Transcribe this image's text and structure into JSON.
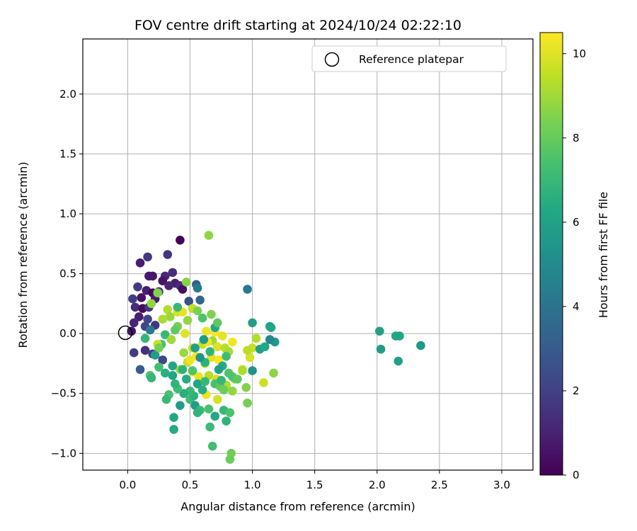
{
  "chart_data": {
    "type": "scatter",
    "title": "FOV centre drift starting at 2024/10/24 02:22:10",
    "xlabel": "Angular distance from reference (arcmin)",
    "ylabel": "Rotation from reference (arcmin)",
    "xlim": [
      -0.36,
      3.25
    ],
    "ylim": [
      -1.14,
      2.46
    ],
    "xticks": [
      0.0,
      0.5,
      1.0,
      1.5,
      2.0,
      2.5,
      3.0
    ],
    "xtick_labels": [
      "0.0",
      "0.5",
      "1.0",
      "1.5",
      "2.0",
      "2.5",
      "3.0"
    ],
    "yticks": [
      -1.0,
      -0.5,
      0.0,
      0.5,
      1.0,
      1.5,
      2.0
    ],
    "ytick_labels": [
      "−1.0",
      "−0.5",
      "0.0",
      "0.5",
      "1.0",
      "1.5",
      "2.0"
    ],
    "grid": true,
    "legend": {
      "placement": "upper-right",
      "entries": [
        "Reference platepar"
      ]
    },
    "reference_point": {
      "x": 0.0,
      "y": 0.0,
      "marker": "open-circle"
    },
    "colorbar": {
      "label": "Hours from first FF file",
      "colormap": "viridis",
      "range": [
        0,
        10.5
      ],
      "ticks": [
        0,
        2,
        4,
        6,
        8,
        10
      ],
      "tick_labels": [
        "0",
        "2",
        "4",
        "6",
        "8",
        "10"
      ]
    },
    "series": [
      {
        "color_by": "hours",
        "points": [
          [
            0.42,
            0.78,
            0.1
          ],
          [
            0.1,
            0.59,
            0.9
          ],
          [
            0.16,
            0.64,
            1.7
          ],
          [
            0.32,
            0.66,
            1.6
          ],
          [
            0.36,
            0.51,
            1.4
          ],
          [
            0.17,
            0.48,
            0.8
          ],
          [
            0.2,
            0.48,
            0.7
          ],
          [
            0.3,
            0.48,
            1.2
          ],
          [
            0.28,
            0.44,
            0.6
          ],
          [
            0.38,
            0.42,
            0.9
          ],
          [
            0.33,
            0.4,
            1.1
          ],
          [
            0.42,
            0.4,
            1.3
          ],
          [
            0.08,
            0.39,
            1.8
          ],
          [
            0.15,
            0.36,
            0.9
          ],
          [
            0.2,
            0.34,
            0.2
          ],
          [
            0.25,
            0.35,
            1.5
          ],
          [
            0.44,
            0.37,
            0.4
          ],
          [
            0.04,
            0.29,
            1.9
          ],
          [
            0.11,
            0.3,
            0.5
          ],
          [
            0.22,
            0.29,
            0.8
          ],
          [
            0.06,
            0.22,
            1.3
          ],
          [
            0.12,
            0.21,
            0.3
          ],
          [
            0.17,
            0.22,
            1.6
          ],
          [
            0.09,
            0.14,
            0.9
          ],
          [
            0.16,
            0.12,
            2.2
          ],
          [
            0.05,
            0.09,
            1.1
          ],
          [
            0.14,
            0.06,
            2.1
          ],
          [
            0.22,
            0.07,
            1.7
          ],
          [
            0.03,
            0.02,
            0.6
          ],
          [
            0.05,
            -0.16,
            1.9
          ],
          [
            0.1,
            -0.3,
            3.0
          ],
          [
            0.14,
            -0.14,
            1.5
          ],
          [
            0.2,
            -0.17,
            2.0
          ],
          [
            0.28,
            -0.22,
            2.2
          ],
          [
            0.55,
            0.41,
            3.2
          ],
          [
            0.58,
            0.28,
            3.5
          ],
          [
            0.49,
            0.27,
            2.6
          ],
          [
            0.96,
            0.37,
            4.2
          ],
          [
            0.18,
            0.03,
            4.3
          ],
          [
            0.47,
            0.43,
            8.6
          ],
          [
            0.65,
            0.82,
            8.7
          ],
          [
            0.24,
            0.34,
            8.5
          ],
          [
            0.19,
            0.25,
            8.8
          ],
          [
            0.32,
            0.2,
            9.3
          ],
          [
            0.4,
            0.18,
            9.8
          ],
          [
            0.44,
            0.18,
            10.1
          ],
          [
            0.52,
            0.21,
            9.5
          ],
          [
            0.34,
            0.14,
            8.9
          ],
          [
            0.28,
            0.12,
            9.2
          ],
          [
            0.4,
            0.06,
            8.3
          ],
          [
            0.46,
            0.0,
            10.0
          ],
          [
            0.38,
            0.03,
            7.9
          ],
          [
            0.63,
            0.02,
            10.2
          ],
          [
            0.7,
            0.01,
            10.4
          ],
          [
            0.68,
            -0.06,
            9.0
          ],
          [
            0.76,
            -0.02,
            10.1
          ],
          [
            0.84,
            -0.07,
            10.3
          ],
          [
            0.6,
            -0.09,
            9.6
          ],
          [
            0.64,
            -0.07,
            10.3
          ],
          [
            0.72,
            -0.11,
            9.9
          ],
          [
            0.78,
            -0.12,
            9.4
          ],
          [
            0.81,
            -0.15,
            9.1
          ],
          [
            0.52,
            -0.12,
            9.7
          ],
          [
            0.45,
            -0.16,
            8.9
          ],
          [
            0.55,
            -0.19,
            10.4
          ],
          [
            0.67,
            -0.2,
            10.0
          ],
          [
            0.73,
            -0.22,
            10.4
          ],
          [
            0.62,
            -0.25,
            9.3
          ],
          [
            0.48,
            -0.24,
            9.6
          ],
          [
            0.5,
            -0.22,
            10.2
          ],
          [
            0.42,
            -0.3,
            9.0
          ],
          [
            0.52,
            -0.32,
            10.3
          ],
          [
            0.57,
            -0.36,
            10.1
          ],
          [
            0.65,
            -0.35,
            9.4
          ],
          [
            0.71,
            -0.38,
            9.8
          ],
          [
            0.79,
            -0.43,
            9.2
          ],
          [
            0.84,
            -0.48,
            8.8
          ],
          [
            0.92,
            -0.3,
            9.6
          ],
          [
            0.95,
            -0.45,
            8.5
          ],
          [
            0.98,
            -0.2,
            9.9
          ],
          [
            1.0,
            -0.12,
            9.6
          ],
          [
            1.03,
            -0.04,
            9.3
          ],
          [
            0.96,
            -0.14,
            9.4
          ],
          [
            1.09,
            -0.41,
            9.7
          ],
          [
            1.17,
            -0.33,
            8.7
          ],
          [
            0.96,
            -0.58,
            8.3
          ],
          [
            0.63,
            -0.51,
            10.2
          ],
          [
            0.72,
            -0.55,
            9.8
          ],
          [
            0.86,
            -0.38,
            8.6
          ],
          [
            0.92,
            -0.31,
            9.2
          ],
          [
            1.0,
            0.09,
            5.8
          ],
          [
            1.14,
            0.06,
            6.0
          ],
          [
            1.15,
            0.05,
            6.2
          ],
          [
            1.06,
            -0.13,
            5.9
          ],
          [
            1.1,
            -0.11,
            6.3
          ],
          [
            1.18,
            -0.07,
            5.7
          ],
          [
            1.0,
            -0.31,
            5.3
          ],
          [
            0.56,
            0.38,
            4.2
          ],
          [
            0.7,
            0.05,
            6.3
          ],
          [
            0.42,
            -0.6,
            5.8
          ],
          [
            0.37,
            -0.7,
            6.3
          ],
          [
            0.37,
            -0.8,
            6.4
          ],
          [
            0.5,
            -0.55,
            7.2
          ],
          [
            0.53,
            -0.52,
            6.7
          ],
          [
            0.54,
            -0.6,
            5.9
          ],
          [
            0.58,
            -0.64,
            7.1
          ],
          [
            0.56,
            -0.66,
            6.8
          ],
          [
            0.65,
            -0.63,
            7.4
          ],
          [
            0.7,
            -0.69,
            6.2
          ],
          [
            0.66,
            -0.78,
            7.1
          ],
          [
            0.77,
            -0.64,
            6.9
          ],
          [
            0.79,
            -0.73,
            6.8
          ],
          [
            0.82,
            -0.66,
            7.5
          ],
          [
            0.68,
            -0.94,
            7.3
          ],
          [
            0.83,
            -1.0,
            8.2
          ],
          [
            0.82,
            -1.05,
            8.1
          ],
          [
            0.5,
            -0.48,
            7.0
          ],
          [
            0.45,
            -0.5,
            6.6
          ],
          [
            0.4,
            -0.46,
            7.2
          ],
          [
            0.38,
            -0.42,
            6.8
          ],
          [
            0.33,
            -0.51,
            7.4
          ],
          [
            0.31,
            -0.55,
            7.0
          ],
          [
            0.36,
            -0.35,
            6.2
          ],
          [
            0.3,
            -0.33,
            6.6
          ],
          [
            0.25,
            -0.28,
            7.3
          ],
          [
            0.18,
            -0.35,
            7.5
          ],
          [
            0.19,
            -0.37,
            6.9
          ],
          [
            0.22,
            -0.18,
            5.8
          ],
          [
            0.27,
            -0.09,
            7.3
          ],
          [
            0.3,
            -0.01,
            7.0
          ],
          [
            0.14,
            -0.04,
            6.9
          ],
          [
            0.36,
            -0.27,
            6.2
          ],
          [
            0.44,
            -0.3,
            6.7
          ],
          [
            0.47,
            -0.38,
            6.5
          ],
          [
            0.52,
            -0.31,
            7.6
          ],
          [
            0.56,
            -0.42,
            6.1
          ],
          [
            0.6,
            -0.47,
            6.5
          ],
          [
            0.62,
            -0.4,
            7.0
          ],
          [
            0.7,
            -0.42,
            7.4
          ],
          [
            0.74,
            -0.44,
            7.8
          ],
          [
            0.75,
            -0.39,
            6.9
          ],
          [
            0.77,
            -0.47,
            8.1
          ],
          [
            0.81,
            -0.33,
            7.6
          ],
          [
            0.84,
            -0.36,
            7.5
          ],
          [
            0.88,
            -0.38,
            7.9
          ],
          [
            0.62,
            -0.24,
            6.6
          ],
          [
            0.58,
            -0.2,
            5.4
          ],
          [
            0.54,
            -0.12,
            6.0
          ],
          [
            0.61,
            -0.05,
            5.7
          ],
          [
            0.66,
            -0.15,
            6.8
          ],
          [
            0.79,
            -0.19,
            7.2
          ],
          [
            0.76,
            -0.27,
            6.4
          ],
          [
            0.73,
            -0.3,
            5.9
          ],
          [
            0.56,
            0.19,
            8.4
          ],
          [
            0.67,
            0.16,
            8.5
          ],
          [
            0.6,
            0.13,
            7.5
          ],
          [
            0.72,
            0.09,
            7.9
          ],
          [
            0.48,
            0.11,
            8.8
          ],
          [
            0.24,
            -0.09,
            9.6
          ],
          [
            0.35,
            -0.05,
            9.0
          ],
          [
            0.25,
            -0.12,
            8.3
          ],
          [
            2.02,
            0.02,
            6.0
          ],
          [
            2.03,
            -0.13,
            5.8
          ],
          [
            2.15,
            -0.02,
            6.2
          ],
          [
            2.18,
            -0.02,
            6.1
          ],
          [
            2.17,
            -0.23,
            5.9
          ],
          [
            2.35,
            -0.1,
            5.6
          ],
          [
            1.14,
            -0.05,
            4.8
          ],
          [
            0.4,
            0.22,
            7.0
          ]
        ]
      }
    ]
  }
}
